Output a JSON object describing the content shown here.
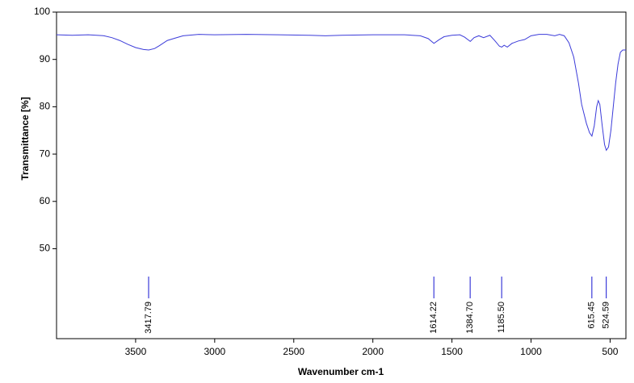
{
  "chart_data": {
    "type": "line",
    "x_label": "Wavenumber cm-1",
    "y_label": "Transmittance [%]",
    "xlim": [
      4000,
      400
    ],
    "ylim": [
      31,
      100
    ],
    "xticks": [
      3500,
      3000,
      2500,
      2000,
      1500,
      1000,
      500
    ],
    "yticks": [
      50,
      60,
      70,
      80,
      90,
      100
    ],
    "color": "#3b3bd9",
    "x": [
      4000,
      3900,
      3800,
      3700,
      3650,
      3600,
      3550,
      3500,
      3450,
      3417,
      3380,
      3350,
      3300,
      3250,
      3200,
      3100,
      3000,
      2800,
      2600,
      2400,
      2300,
      2200,
      2000,
      1800,
      1700,
      1650,
      1614,
      1580,
      1550,
      1500,
      1450,
      1420,
      1384,
      1360,
      1330,
      1300,
      1260,
      1230,
      1200,
      1185,
      1170,
      1150,
      1120,
      1080,
      1040,
      1000,
      950,
      900,
      850,
      820,
      790,
      760,
      730,
      700,
      680,
      650,
      630,
      615,
      600,
      585,
      575,
      565,
      550,
      535,
      524,
      510,
      495,
      480,
      465,
      450,
      435,
      420,
      400
    ],
    "values": [
      95.2,
      95.1,
      95.2,
      95.0,
      94.6,
      94.0,
      93.2,
      92.5,
      92.1,
      92.0,
      92.3,
      92.9,
      94.0,
      94.5,
      95.0,
      95.3,
      95.2,
      95.3,
      95.2,
      95.1,
      95.0,
      95.1,
      95.2,
      95.2,
      95.0,
      94.4,
      93.4,
      94.2,
      94.8,
      95.1,
      95.2,
      94.7,
      93.8,
      94.6,
      95.0,
      94.6,
      95.1,
      94.0,
      92.8,
      92.6,
      93.0,
      92.6,
      93.4,
      93.9,
      94.2,
      95.0,
      95.3,
      95.3,
      95.0,
      95.3,
      95.0,
      93.5,
      90.5,
      85,
      80.5,
      76.5,
      74.5,
      73.8,
      76,
      80,
      81.3,
      80.5,
      76,
      72,
      70.8,
      71.5,
      75,
      80,
      85,
      89,
      91.5,
      92,
      92
    ],
    "peaks": [
      3417.79,
      1614.22,
      {
        "value": 1384.7,
        "label": "1384.70"
      },
      {
        "value": 1185.5,
        "label": "1185.50"
      },
      615.45,
      524.59
    ]
  }
}
